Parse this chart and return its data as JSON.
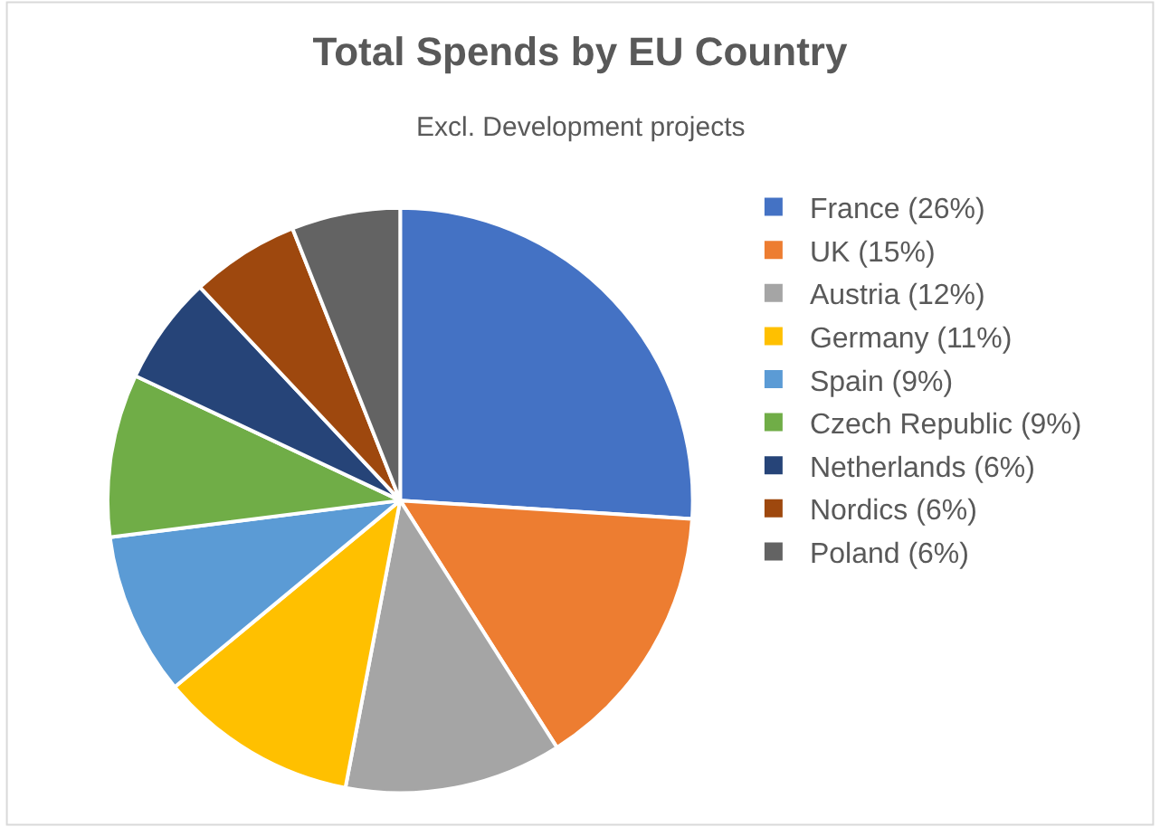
{
  "chart_data": {
    "type": "pie",
    "title": "Total Spends by EU Country",
    "subtitle": "Excl. Development projects",
    "categories": [
      "France (26%)",
      "UK (15%)",
      "Austria (12%)",
      "Germany (11%)",
      "Spain (9%)",
      "Czech Republic (9%)",
      "Netherlands (6%)",
      "Nordics (6%)",
      "Poland (6%)"
    ],
    "values": [
      26,
      15,
      12,
      11,
      9,
      9,
      6,
      6,
      6
    ],
    "colors": [
      "#4472c4",
      "#ed7d31",
      "#a5a5a5",
      "#ffc000",
      "#5b9bd5",
      "#70ad47",
      "#264478",
      "#9e480e",
      "#636363"
    ],
    "legend": "right"
  }
}
